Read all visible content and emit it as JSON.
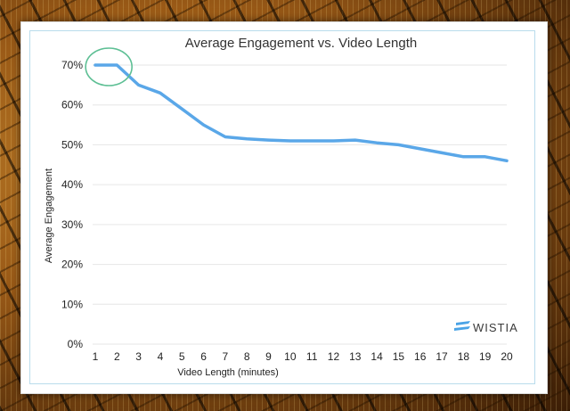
{
  "chart_data": {
    "type": "line",
    "title": "Average Engagement vs. Video Length",
    "xlabel": "Video Length (minutes)",
    "ylabel": "Average Engagement",
    "x": [
      1,
      2,
      3,
      4,
      5,
      6,
      7,
      8,
      9,
      10,
      11,
      12,
      13,
      14,
      15,
      16,
      17,
      18,
      19,
      20
    ],
    "series": [
      {
        "values": [
          70,
          70,
          65,
          63,
          59,
          55,
          52,
          51.5,
          51.2,
          51,
          51,
          51,
          51.2,
          50.5,
          50,
          49,
          48,
          47,
          47,
          46
        ]
      }
    ],
    "xlim": [
      1,
      20
    ],
    "ylim": [
      0,
      70
    ],
    "y_ticks": [
      "0%",
      "10%",
      "20%",
      "30%",
      "40%",
      "50%",
      "60%",
      "70%"
    ],
    "x_ticks": [
      "1",
      "2",
      "3",
      "4",
      "5",
      "6",
      "7",
      "8",
      "9",
      "10",
      "11",
      "12",
      "13",
      "14",
      "15",
      "16",
      "17",
      "18",
      "19",
      "20"
    ],
    "grid": true,
    "line_color": "#5aa7e8",
    "highlight_color": "#5dbf94",
    "highlight": {
      "x_range": [
        1,
        2
      ],
      "y": 70
    },
    "brand": "WISTIA",
    "brand_icon": "wistia-logo-icon",
    "brand_icon_color": "#4aa3e6"
  }
}
